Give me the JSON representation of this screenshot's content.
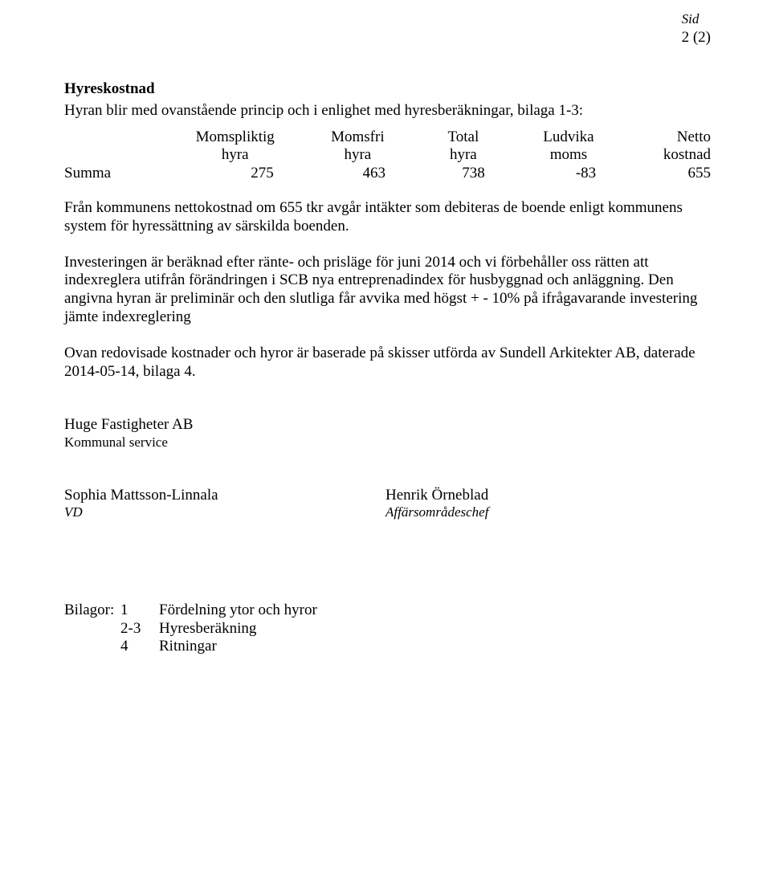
{
  "header": {
    "sid_label": "Sid",
    "page_indicator": "2 (2)"
  },
  "section": {
    "title": "Hyreskostnad",
    "intro": "Hyran blir med ovanstående princip och i enlighet med hyresberäkningar, bilaga 1-3:"
  },
  "table": {
    "head_row1": [
      "",
      "Momspliktig",
      "Momsfri",
      "Total",
      "Ludvika",
      "Netto"
    ],
    "head_row2": [
      "",
      "hyra",
      "hyra",
      "hyra",
      "moms",
      "kostnad"
    ],
    "body": {
      "label": "Summa",
      "c1": "275",
      "c2": "463",
      "c3": "738",
      "c4": "-83",
      "c5": "655"
    }
  },
  "paragraphs": {
    "p1": "Från kommunens nettokostnad om 655 tkr avgår intäkter som debiteras de boende enligt kommunens system för hyressättning av särskilda boenden.",
    "p2": "Investeringen är beräknad efter ränte- och prisläge för juni 2014 och vi förbehåller oss rätten att indexreglera utifrån förändringen i SCB nya entreprenadindex för husbyggnad och anläggning. Den angivna hyran är preliminär och den slutliga får avvika med högst + - 10% på ifrågavarande investering jämte indexreglering",
    "p3": "Ovan redovisade kostnader och hyror är baserade på skisser utförda av Sundell Arkitekter AB, daterade 2014-05-14, bilaga 4."
  },
  "company": {
    "name": "Huge Fastigheter AB",
    "dept": "Kommunal service"
  },
  "signers": {
    "left_name": "Sophia Mattsson-Linnala",
    "left_title": "VD",
    "right_name": "Henrik Örneblad",
    "right_title": "Affärsområdeschef"
  },
  "attachments": {
    "label": "Bilagor:",
    "rows": [
      {
        "num": "1",
        "text": "Fördelning ytor och hyror"
      },
      {
        "num": "2-3",
        "text": "Hyresberäkning"
      },
      {
        "num": "4",
        "text": "Ritningar"
      }
    ]
  }
}
